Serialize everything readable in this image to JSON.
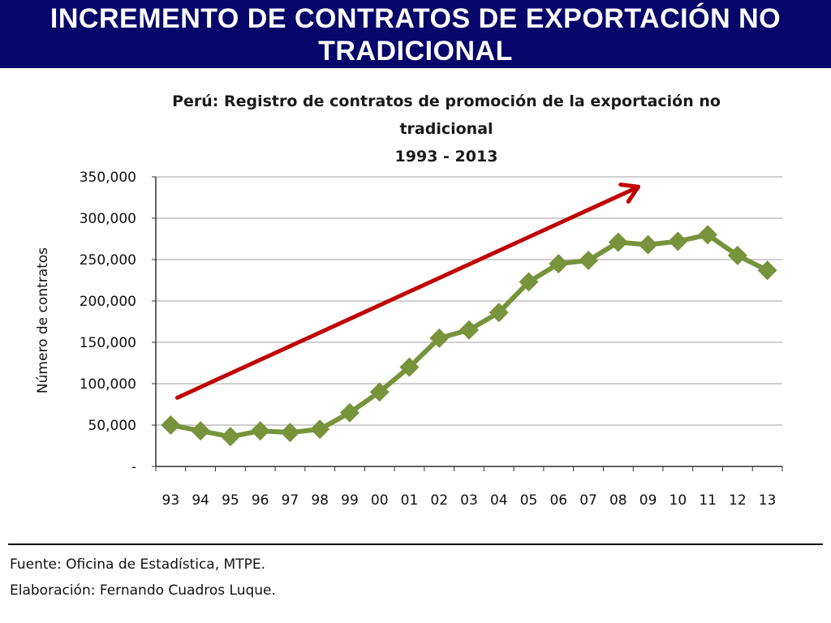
{
  "banner": {
    "title_line1": "INCREMENTO DE CONTRATOS DE EXPORTACIÓN NO",
    "title_line2": "TRADICIONAL"
  },
  "footer": {
    "source": "Fuente: Oficina de Estadística, MTPE.",
    "prepared_by": "Elaboración: Fernando Cuadros Luque."
  },
  "colors": {
    "banner_bg": "#06066a",
    "series": "#77933c",
    "trend_arrow": "#c00000",
    "grid": "#bfbfbf"
  },
  "chart_data": {
    "type": "line",
    "title_lines": [
      "Perú: Registro de contratos de promoción de la exportación  no",
      "tradicional",
      "1993 - 2013"
    ],
    "xlabel": "",
    "ylabel": "Número de contratos",
    "categories": [
      "93",
      "94",
      "95",
      "96",
      "97",
      "98",
      "99",
      "00",
      "01",
      "02",
      "03",
      "04",
      "05",
      "06",
      "07",
      "08",
      "09",
      "10",
      "11",
      "12",
      "13"
    ],
    "series": [
      {
        "values": [
          50000,
          43000,
          36000,
          43000,
          41000,
          45000,
          65000,
          90000,
          120000,
          155000,
          165000,
          186000,
          223000,
          245000,
          249000,
          271000,
          268000,
          272000,
          280000,
          255000,
          237000
        ]
      }
    ],
    "ylim": [
      0,
      350000
    ],
    "yticks": [
      0,
      50000,
      100000,
      150000,
      200000,
      250000,
      300000,
      350000
    ],
    "ytick_labels": [
      "-",
      "50,000",
      "100,000",
      "150,000",
      "200,000",
      "250,000",
      "300,000",
      "350,000"
    ],
    "grid": true,
    "marker": "diamond",
    "annotation": {
      "type": "trend-arrow",
      "from": {
        "x": "93",
        "y": 83000
      },
      "to": {
        "x": "09",
        "y": 338000
      }
    }
  }
}
